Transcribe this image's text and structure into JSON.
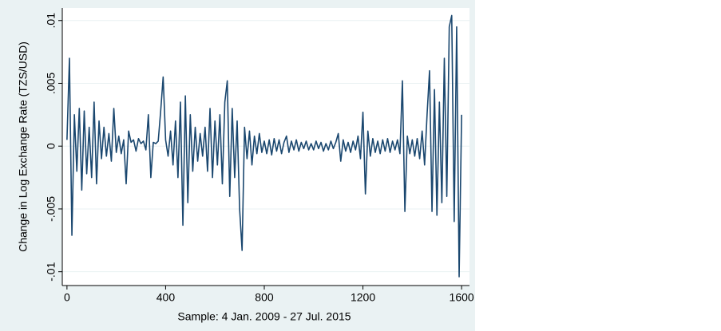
{
  "chart_data": {
    "type": "line",
    "ylabel": "Change in Log Exchange Rate (TZS/USD)",
    "xlabel": "Sample: 4 Jan. 2009 - 27 Jul. 2015",
    "xlim": [
      -19,
      1632
    ],
    "ylim": [
      -0.0111,
      0.011
    ],
    "xticks": [
      0,
      400,
      800,
      1200,
      1600
    ],
    "yticks": [
      {
        "value": -0.01,
        "label": "-.01"
      },
      {
        "value": -0.005,
        "label": "-.005"
      },
      0,
      {
        "value": 0.005,
        "label": ".005"
      },
      {
        "value": 0.01,
        "label": ".01"
      }
    ],
    "grid": true,
    "series": [
      {
        "color": "#1a476f",
        "x": [
          0,
          10,
          20,
          30,
          40,
          50,
          60,
          70,
          80,
          90,
          100,
          110,
          120,
          130,
          140,
          150,
          160,
          170,
          180,
          190,
          200,
          210,
          220,
          230,
          240,
          250,
          260,
          270,
          280,
          290,
          300,
          310,
          320,
          330,
          340,
          350,
          360,
          370,
          380,
          390,
          400,
          410,
          420,
          430,
          440,
          450,
          460,
          470,
          480,
          490,
          500,
          510,
          520,
          530,
          540,
          550,
          560,
          570,
          580,
          590,
          600,
          610,
          620,
          630,
          640,
          650,
          660,
          670,
          680,
          690,
          700,
          710,
          720,
          730,
          740,
          750,
          760,
          770,
          780,
          790,
          800,
          810,
          820,
          830,
          840,
          850,
          860,
          870,
          880,
          890,
          900,
          910,
          920,
          930,
          940,
          950,
          960,
          970,
          980,
          990,
          1000,
          1010,
          1020,
          1030,
          1040,
          1050,
          1060,
          1070,
          1080,
          1090,
          1100,
          1110,
          1120,
          1130,
          1140,
          1150,
          1160,
          1170,
          1180,
          1190,
          1200,
          1210,
          1220,
          1230,
          1240,
          1250,
          1260,
          1270,
          1280,
          1290,
          1300,
          1310,
          1320,
          1330,
          1340,
          1350,
          1360,
          1370,
          1380,
          1390,
          1400,
          1410,
          1420,
          1430,
          1440,
          1450,
          1460,
          1470,
          1480,
          1490,
          1500,
          1510,
          1520,
          1530,
          1540,
          1550,
          1560,
          1570,
          1580,
          1590,
          1600
        ],
        "values": [
          0.0005,
          0.007,
          -0.0071,
          0.0025,
          -0.002,
          0.003,
          -0.0035,
          0.0028,
          -0.0022,
          0.0015,
          -0.0025,
          0.0035,
          -0.003,
          0.002,
          -0.001,
          0.0015,
          -0.0008,
          0.001,
          -0.0012,
          0.003,
          -0.0005,
          0.0008,
          -0.0006,
          0.0005,
          -0.003,
          0.0012,
          0.0003,
          0.0005,
          -0.0004,
          0.0006,
          0.0002,
          0.0004,
          -0.0003,
          0.0025,
          -0.0025,
          0.0003,
          0.0002,
          0.0004,
          0.0028,
          0.0055,
          0.0005,
          -0.0008,
          0.0012,
          -0.0015,
          0.002,
          -0.0025,
          0.0035,
          -0.0063,
          0.004,
          -0.0045,
          0.0025,
          -0.002,
          0.0015,
          -0.0012,
          0.001,
          -0.0008,
          0.0015,
          -0.002,
          0.003,
          -0.0025,
          0.002,
          -0.0015,
          0.0025,
          -0.003,
          0.0035,
          0.0052,
          -0.004,
          0.003,
          -0.0025,
          0.002,
          -0.005,
          -0.0083,
          0.0015,
          -0.001,
          0.0012,
          -0.0015,
          0.0008,
          -0.0006,
          0.001,
          -0.0005,
          0.0004,
          -0.0006,
          0.0005,
          -0.0007,
          0.0006,
          -0.0004,
          0.0005,
          -0.0006,
          0.0003,
          0.0008,
          -0.0005,
          0.0004,
          -0.0003,
          0.0005,
          -0.0004,
          0.0003,
          -0.0002,
          0.0004,
          -0.0003,
          0.0002,
          -0.0003,
          0.0004,
          -0.0002,
          0.0003,
          -0.0004,
          0.0002,
          -0.0003,
          0.0004,
          -0.0002,
          0.0003,
          0.001,
          -0.0012,
          0.0005,
          -0.0004,
          0.0003,
          -0.0005,
          0.0004,
          -0.0003,
          0.0008,
          -0.001,
          0.0027,
          -0.0038,
          0.0012,
          -0.0008,
          0.0006,
          -0.0005,
          0.0004,
          -0.0006,
          0.0005,
          -0.0004,
          0.0006,
          -0.0005,
          0.0004,
          -0.0003,
          0.0005,
          -0.0006,
          0.0052,
          -0.0052,
          0.0008,
          -0.0006,
          0.0005,
          -0.0008,
          0.0006,
          -0.001,
          0.0012,
          -0.0015,
          0.0025,
          0.006,
          -0.0052,
          0.0045,
          -0.0055,
          0.0035,
          -0.0045,
          0.007,
          -0.004,
          0.0095,
          0.0104,
          -0.006,
          0.0095,
          -0.0104,
          0.0025
        ]
      }
    ]
  }
}
